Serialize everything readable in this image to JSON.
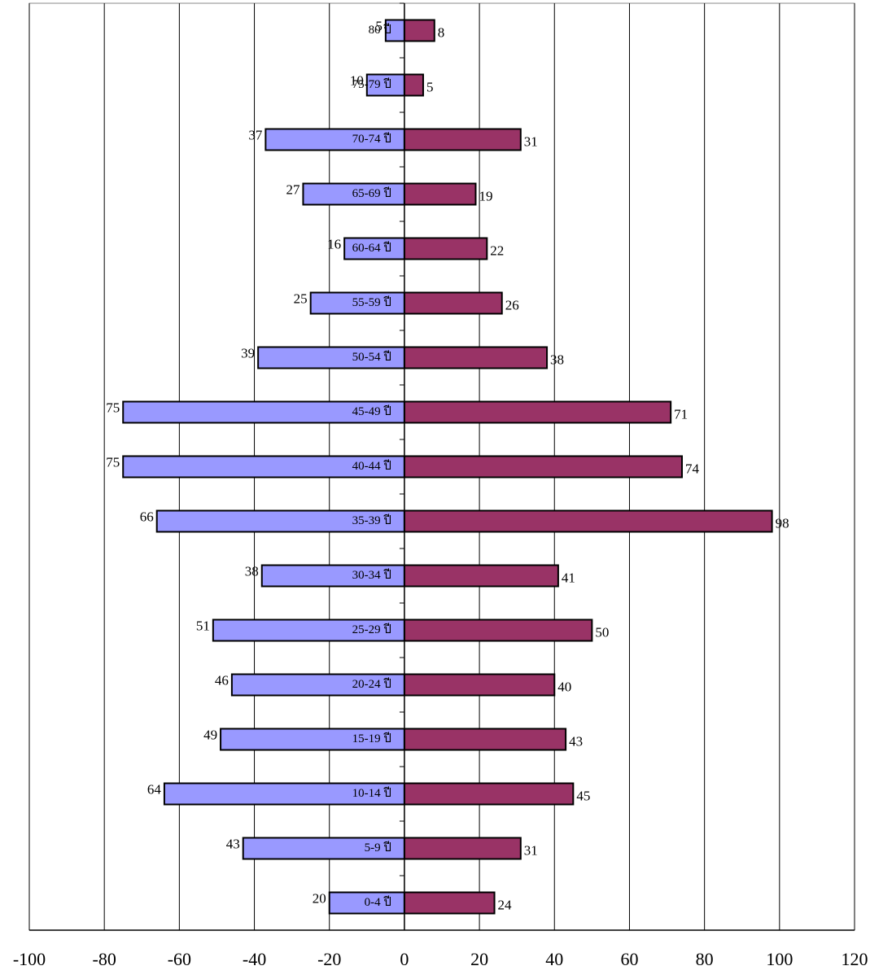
{
  "chart_data": {
    "type": "pyramid",
    "categories": [
      "80 ปี",
      "75-79 ปี",
      "70-74 ปี",
      "65-69 ปี",
      "60-64 ปี",
      "55-59 ปี",
      "50-54 ปี",
      "45-49 ปี",
      "40-44 ปี",
      "35-39 ปี",
      "30-34 ปี",
      "25-29 ปี",
      "20-24 ปี",
      "15-19 ปี",
      "10-14 ปี",
      "5-9 ปี",
      "0-4 ปี"
    ],
    "series": [
      {
        "color": "#9999ff",
        "values": [
          -5,
          -10,
          -37,
          -27,
          -16,
          -25,
          -39,
          -75,
          -75,
          -66,
          -38,
          -51,
          -46,
          -49,
          -64,
          -43,
          -20
        ],
        "value_labels": [
          "5",
          "10",
          "37",
          "27",
          "16",
          "25",
          "39",
          "75",
          "75",
          "66",
          "38",
          "51",
          "46",
          "49",
          "64",
          "43",
          "20"
        ]
      },
      {
        "color": "#993366",
        "values": [
          8,
          5,
          31,
          19,
          22,
          26,
          38,
          71,
          74,
          98,
          41,
          50,
          40,
          43,
          45,
          31,
          24
        ]
      }
    ],
    "xlim": [
      -100,
      120
    ],
    "xticks": [
      -100,
      -80,
      -60,
      -40,
      -20,
      0,
      20,
      40,
      60,
      80,
      100,
      120
    ],
    "grid": true
  }
}
